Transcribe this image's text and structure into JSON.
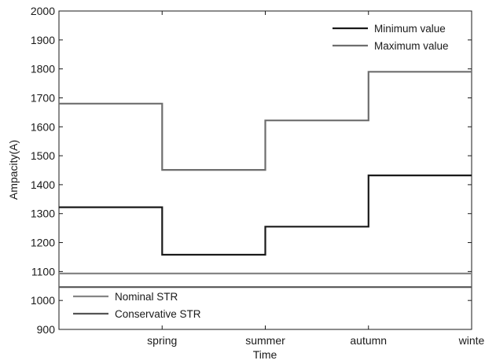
{
  "chart_data": {
    "type": "line",
    "title": "",
    "xlabel": "Time",
    "ylabel": "Ampacity(A)",
    "xlim": [
      0,
      4
    ],
    "ylim": [
      900,
      2000
    ],
    "x_ticks": [
      {
        "value": 1,
        "label": "spring"
      },
      {
        "value": 2,
        "label": "summer"
      },
      {
        "value": 3,
        "label": "autumn"
      },
      {
        "value": 4,
        "label": "winte"
      }
    ],
    "y_ticks": [
      900,
      1000,
      1100,
      1200,
      1300,
      1400,
      1500,
      1600,
      1700,
      1800,
      1900,
      2000
    ],
    "grid": false,
    "series": [
      {
        "name": "Minimum value",
        "color": "#1a1a1a",
        "step": true,
        "points": [
          [
            0,
            1322
          ],
          [
            1,
            1322
          ],
          [
            1,
            1158
          ],
          [
            2,
            1158
          ],
          [
            2,
            1255
          ],
          [
            3,
            1255
          ],
          [
            3,
            1432
          ],
          [
            4,
            1432
          ]
        ]
      },
      {
        "name": "Maximum value",
        "color": "#6e6e6e",
        "step": true,
        "points": [
          [
            0,
            1680
          ],
          [
            1,
            1680
          ],
          [
            1,
            1451
          ],
          [
            2,
            1451
          ],
          [
            2,
            1622
          ],
          [
            3,
            1622
          ],
          [
            3,
            1790
          ],
          [
            4,
            1790
          ]
        ]
      },
      {
        "name": "Nominal STR",
        "color": "#858585",
        "step": false,
        "points": [
          [
            0,
            1093
          ],
          [
            4,
            1093
          ]
        ]
      },
      {
        "name": "Conservative STR",
        "color": "#555555",
        "step": false,
        "points": [
          [
            0,
            1046
          ],
          [
            4,
            1046
          ]
        ]
      }
    ],
    "legends": [
      {
        "placement": "top-right",
        "series": [
          "Minimum value",
          "Maximum value"
        ]
      },
      {
        "placement": "bottom-left",
        "series": [
          "Nominal STR",
          "Conservative STR"
        ]
      }
    ]
  }
}
